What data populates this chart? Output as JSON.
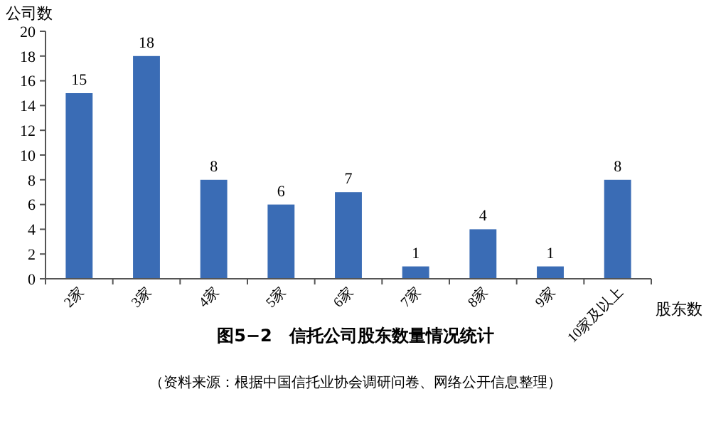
{
  "chart_data": {
    "type": "bar",
    "title": "图5−2　信托公司股东数量情况统计",
    "ylabel": "公司数",
    "xlabel": "股东数",
    "categories": [
      "2家",
      "3家",
      "4家",
      "5家",
      "6家",
      "7家",
      "8家",
      "9家",
      "10家及以上"
    ],
    "values": [
      15,
      18,
      8,
      6,
      7,
      1,
      4,
      1,
      8
    ],
    "color": "#3a6cb5",
    "ylim": [
      0,
      20
    ],
    "yticks": [
      0,
      2,
      4,
      6,
      8,
      10,
      12,
      14,
      16,
      18,
      20
    ],
    "grid": false,
    "data_labels": true,
    "annotations": [
      "（资料来源：根据中国信托业协会调研问卷、网络公开信息整理）"
    ]
  }
}
